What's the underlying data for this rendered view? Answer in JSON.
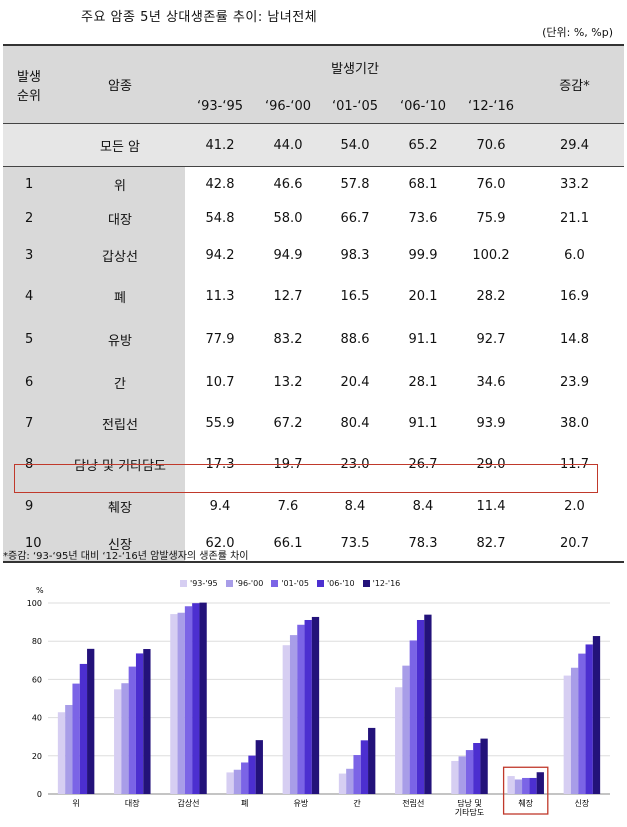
{
  "title": "주요 암종 5년 상대생존률 추이: 남녀전체",
  "unit": "(단위: %, %p)",
  "table": {
    "header_rank": "발생\n순위",
    "header_cancer": "암종",
    "header_period": "발생기간",
    "header_change": "증감*",
    "periods": [
      "‘93-‘95",
      "‘96-‘00",
      "‘01-‘05",
      "‘06-‘10",
      "‘12-‘16"
    ],
    "all_row": {
      "name": "모든 암",
      "values": [
        "41.2",
        "44.0",
        "54.0",
        "65.2",
        "70.6"
      ],
      "change": "29.4"
    },
    "rows": [
      {
        "rank": "1",
        "name": "위",
        "values": [
          "42.8",
          "46.6",
          "57.8",
          "68.1",
          "76.0"
        ],
        "change": "33.2"
      },
      {
        "rank": "2",
        "name": "대장",
        "values": [
          "54.8",
          "58.0",
          "66.7",
          "73.6",
          "75.9"
        ],
        "change": "21.1"
      },
      {
        "rank": "3",
        "name": "갑상선",
        "values": [
          "94.2",
          "94.9",
          "98.3",
          "99.9",
          "100.2"
        ],
        "change": "6.0"
      },
      {
        "rank": "4",
        "name": "폐",
        "values": [
          "11.3",
          "12.7",
          "16.5",
          "20.1",
          "28.2"
        ],
        "change": "16.9"
      },
      {
        "rank": "5",
        "name": "유방",
        "values": [
          "77.9",
          "83.2",
          "88.6",
          "91.1",
          "92.7"
        ],
        "change": "14.8"
      },
      {
        "rank": "6",
        "name": "간",
        "values": [
          "10.7",
          "13.2",
          "20.4",
          "28.1",
          "34.6"
        ],
        "change": "23.9"
      },
      {
        "rank": "7",
        "name": "전립선",
        "values": [
          "55.9",
          "67.2",
          "80.4",
          "91.1",
          "93.9"
        ],
        "change": "38.0"
      },
      {
        "rank": "8",
        "name": "담낭 및 기타담도",
        "values": [
          "17.3",
          "19.7",
          "23.0",
          "26.7",
          "29.0"
        ],
        "change": "11.7"
      },
      {
        "rank": "9",
        "name": "췌장",
        "values": [
          "9.4",
          "7.6",
          "8.4",
          "8.4",
          "11.4"
        ],
        "change": "2.0"
      },
      {
        "rank": "10",
        "name": "신장",
        "values": [
          "62.0",
          "66.1",
          "73.5",
          "78.3",
          "82.7"
        ],
        "change": "20.7"
      }
    ]
  },
  "footnote": "*증감: ‘93-‘95년 대비 ‘12-‘16년 암발생자의 생존률 차이",
  "colors": [
    "#d6cef2",
    "#a89de8",
    "#7b64e6",
    "#4c2fd0",
    "#23127a"
  ],
  "chart_data": {
    "type": "bar",
    "ylabel": "%",
    "ylim": [
      0,
      100
    ],
    "yticks": [
      0,
      20,
      40,
      60,
      80,
      100
    ],
    "categories": [
      "위",
      "대장",
      "갑상선",
      "폐",
      "유방",
      "간",
      "전립선",
      "담낭 및\n기타담도",
      "췌장",
      "신장"
    ],
    "highlighted_category": "췌장",
    "series": [
      {
        "name": "'93-'95",
        "values": [
          42.8,
          54.8,
          94.2,
          11.3,
          77.9,
          10.7,
          55.9,
          17.3,
          9.4,
          62.0
        ]
      },
      {
        "name": "'96-'00",
        "values": [
          46.6,
          58.0,
          94.9,
          12.7,
          83.2,
          13.2,
          67.2,
          19.7,
          7.6,
          66.1
        ]
      },
      {
        "name": "'01-'05",
        "values": [
          57.8,
          66.7,
          98.3,
          16.5,
          88.6,
          20.4,
          80.4,
          23.0,
          8.4,
          73.5
        ]
      },
      {
        "name": "'06-'10",
        "values": [
          68.1,
          73.6,
          99.9,
          20.1,
          91.1,
          28.1,
          91.1,
          26.7,
          8.4,
          78.3
        ]
      },
      {
        "name": "'12-'16",
        "values": [
          76.0,
          75.9,
          100.2,
          28.2,
          92.7,
          34.6,
          93.9,
          29.0,
          11.4,
          82.7
        ]
      }
    ],
    "legend_position": "top"
  }
}
